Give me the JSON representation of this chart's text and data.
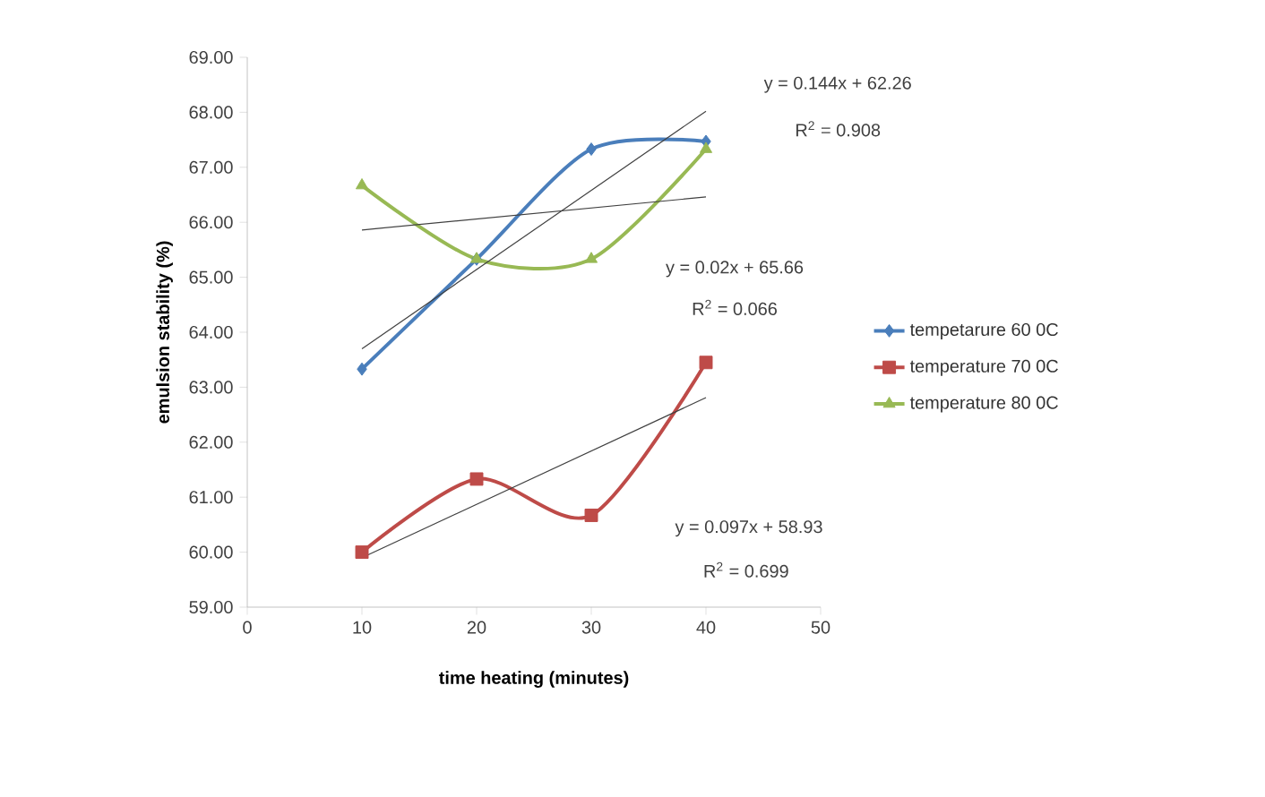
{
  "chart_data": {
    "type": "line",
    "xlabel": "time heating (minutes)",
    "ylabel": "emulsion stability (%)",
    "xlim": [
      0,
      50
    ],
    "xticks": [
      0,
      10,
      20,
      30,
      40,
      50
    ],
    "ylim": [
      59,
      69
    ],
    "yticks": [
      {
        "value": 59,
        "label": "59.00"
      },
      {
        "value": 60,
        "label": "60.00"
      },
      {
        "value": 61,
        "label": "61.00"
      },
      {
        "value": 62,
        "label": "62.00"
      },
      {
        "value": 63,
        "label": "63.00"
      },
      {
        "value": 64,
        "label": "64.00"
      },
      {
        "value": 65,
        "label": "65.00"
      },
      {
        "value": 66,
        "label": "66.00"
      },
      {
        "value": 67,
        "label": "67.00"
      },
      {
        "value": 68,
        "label": "68.00"
      },
      {
        "value": 69,
        "label": "69.00"
      }
    ],
    "x": [
      10,
      20,
      30,
      40
    ],
    "series": [
      {
        "name": "tempetarure 60 0C",
        "color": "#4a7ebb",
        "marker": "diamond",
        "values": [
          63.33,
          65.33,
          67.33,
          67.47
        ]
      },
      {
        "name": "temperature 70  0C",
        "color": "#be4b48",
        "marker": "square",
        "values": [
          60.0,
          61.33,
          60.67,
          63.45
        ]
      },
      {
        "name": "temperature 80 0C",
        "color": "#98b954",
        "marker": "triangle",
        "values": [
          66.67,
          65.33,
          65.33,
          67.33
        ]
      },
      {
        "color": "#404040",
        "marker": "none",
        "values": [
          63.7,
          null,
          null,
          68.02
        ]
      },
      {
        "color": "#404040",
        "marker": "none",
        "values": [
          65.86,
          null,
          null,
          66.46
        ]
      },
      {
        "color": "#404040",
        "marker": "none",
        "values": [
          59.9,
          null,
          null,
          62.81
        ]
      }
    ],
    "annotations": [
      "y = 0.144x + 62.26",
      "R$^{2}$ = 0.908",
      "y = 0.02x + 65.66",
      "R$^{2}$ = 0.066",
      "y = 0.097x + 58.93",
      "R$^{2}$ = 0.699"
    ],
    "legend": "right",
    "grid": false
  }
}
